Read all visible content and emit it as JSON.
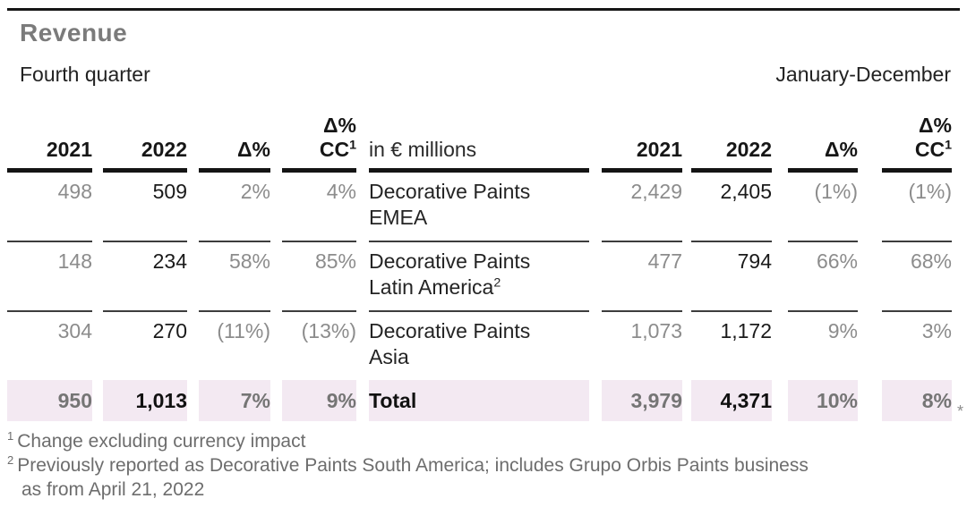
{
  "title": "Revenue",
  "period_left": "Fourth quarter",
  "period_right": "January-December",
  "table": {
    "unit_label": "in € millions",
    "col_headers": {
      "y2021": "2021",
      "y2022": "2022",
      "delta": "Δ%",
      "delta_cc_top": "Δ%",
      "delta_cc_bottom": "CC",
      "delta_cc_sup": "1"
    },
    "rows": [
      {
        "q4": {
          "y2021": "498",
          "y2022": "509",
          "delta": "2%",
          "delta_cc": "4%"
        },
        "label_line1": "Decorative Paints",
        "label_line2": "EMEA",
        "fy": {
          "y2021": "2,429",
          "y2022": "2,405",
          "delta": "(1%)",
          "delta_cc": "(1%)"
        }
      },
      {
        "q4": {
          "y2021": "148",
          "y2022": "234",
          "delta": "58%",
          "delta_cc": "85%"
        },
        "label_line1": "Decorative Paints",
        "label_line2": "Latin America",
        "label_sup": "2",
        "fy": {
          "y2021": "477",
          "y2022": "794",
          "delta": "66%",
          "delta_cc": "68%"
        }
      },
      {
        "q4": {
          "y2021": "304",
          "y2022": "270",
          "delta": "(11%)",
          "delta_cc": "(13%)"
        },
        "label_line1": "Decorative Paints",
        "label_line2": "Asia",
        "fy": {
          "y2021": "1,073",
          "y2022": "1,172",
          "delta": "9%",
          "delta_cc": "3%"
        }
      }
    ],
    "total_row": {
      "q4": {
        "y2021": "950",
        "y2022": "1,013",
        "delta": "7%",
        "delta_cc": "9%"
      },
      "label": "Total",
      "fy": {
        "y2021": "3,979",
        "y2022": "4,371",
        "delta": "10%",
        "delta_cc": "8%"
      },
      "asterisk": "*"
    }
  },
  "footnotes": [
    {
      "sup": "1",
      "text": "Change excluding currency impact"
    },
    {
      "sup": "2",
      "line1": "Previously reported as Decorative Paints South America; includes Grupo Orbis Paints business",
      "line2": "as from April 21, 2022"
    }
  ],
  "colors": {
    "total_row_bg": "#f3e9f2",
    "muted_value_text": "#8c8c8c",
    "title_gray": "#7b7b7b",
    "rule_black": "#141414"
  }
}
